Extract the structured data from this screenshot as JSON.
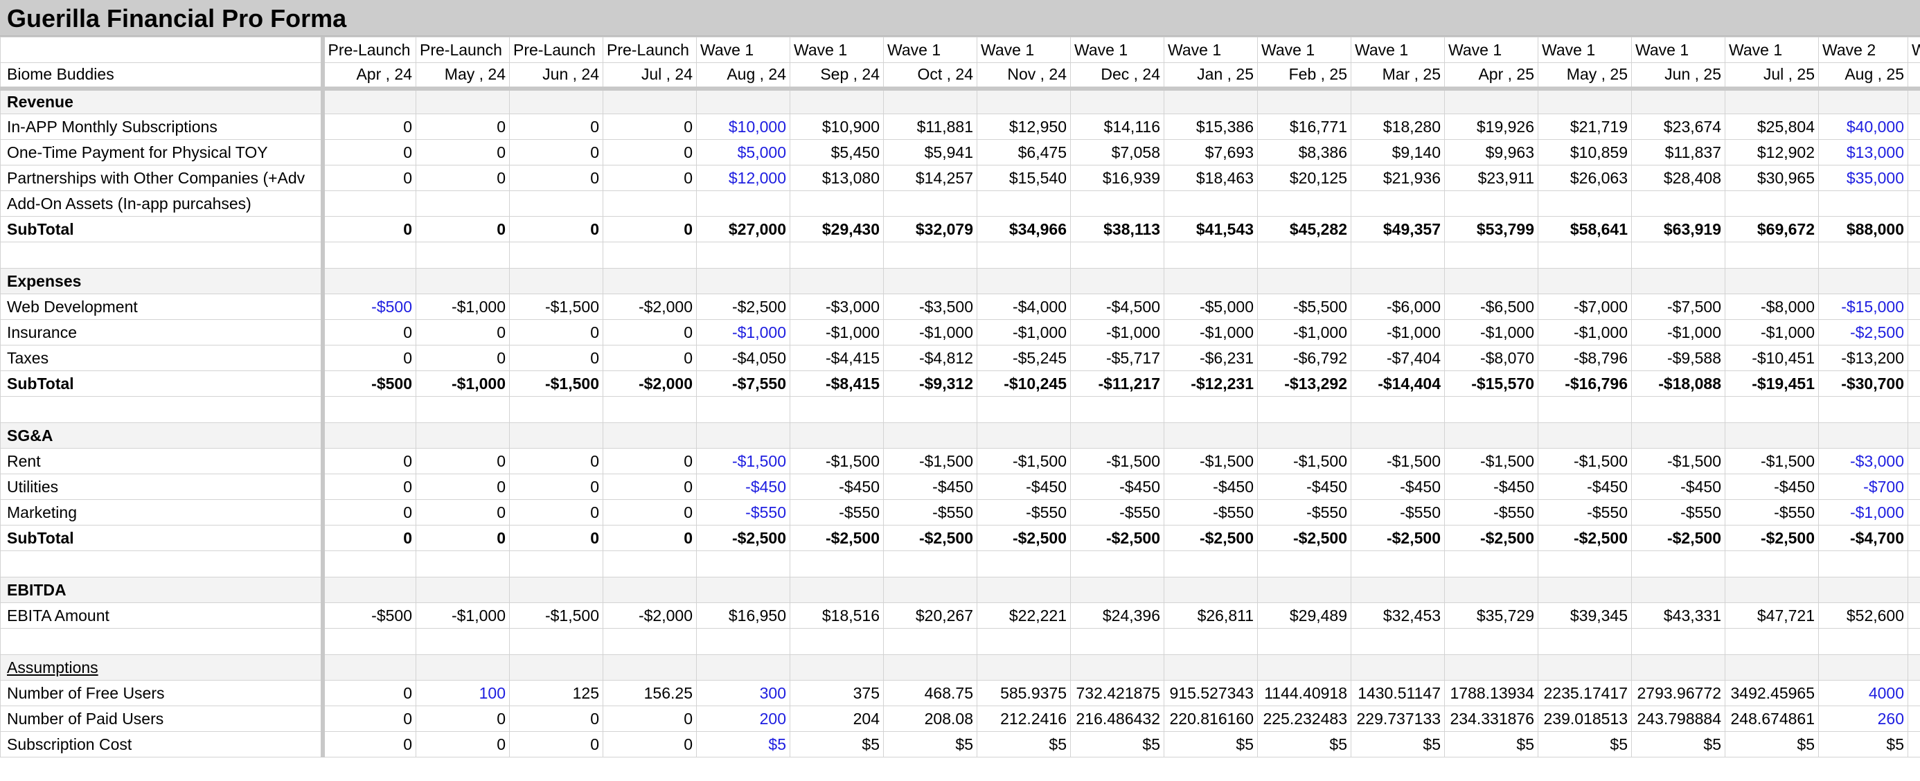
{
  "title": "Guerilla Financial Pro Forma",
  "sheet_label": "Biome Buddies",
  "phases": [
    "Pre-Launch",
    "Pre-Launch",
    "Pre-Launch",
    "Pre-Launch",
    "Wave 1",
    "Wave 1",
    "Wave 1",
    "Wave 1",
    "Wave 1",
    "Wave 1",
    "Wave 1",
    "Wave 1",
    "Wave 1",
    "Wave 1",
    "Wave 1",
    "Wave 1",
    "Wave 2",
    "W"
  ],
  "months": [
    "Apr , 24",
    "May , 24",
    "Jun , 24",
    "Jul , 24",
    "Aug , 24",
    "Sep , 24",
    "Oct , 24",
    "Nov , 24",
    "Dec , 24",
    "Jan , 25",
    "Feb , 25",
    "Mar , 25",
    "Apr , 25",
    "May , 25",
    "Jun , 25",
    "Jul , 25",
    "Aug , 25",
    ""
  ],
  "sections": [
    {
      "heading": "Revenue",
      "rows": [
        {
          "label": "In-APP Monthly Subscriptions",
          "values": [
            "0",
            "0",
            "0",
            "0",
            "$10,000",
            "$10,900",
            "$11,881",
            "$12,950",
            "$14,116",
            "$15,386",
            "$16,771",
            "$18,280",
            "$19,926",
            "$21,719",
            "$23,674",
            "$25,804",
            "$40,000",
            ""
          ],
          "blue": [
            4,
            16
          ]
        },
        {
          "label": "One-Time Payment for Physical TOY",
          "values": [
            "0",
            "0",
            "0",
            "0",
            "$5,000",
            "$5,450",
            "$5,941",
            "$6,475",
            "$7,058",
            "$7,693",
            "$8,386",
            "$9,140",
            "$9,963",
            "$10,859",
            "$11,837",
            "$12,902",
            "$13,000",
            ""
          ],
          "blue": [
            4,
            16
          ]
        },
        {
          "label": "Partnerships with Other Companies (+Adv",
          "values": [
            "0",
            "0",
            "0",
            "0",
            "$12,000",
            "$13,080",
            "$14,257",
            "$15,540",
            "$16,939",
            "$18,463",
            "$20,125",
            "$21,936",
            "$23,911",
            "$26,063",
            "$28,408",
            "$30,965",
            "$35,000",
            ""
          ],
          "blue": [
            4,
            16
          ]
        },
        {
          "label": "Add-On Assets (In-app purcahses)",
          "values": [
            "",
            "",
            "",
            "",
            "",
            "",
            "",
            "",
            "",
            "",
            "",
            "",
            "",
            "",
            "",
            "",
            "",
            ""
          ],
          "blue": []
        }
      ],
      "subtotal": {
        "label": "SubTotal",
        "values": [
          "0",
          "0",
          "0",
          "0",
          "$27,000",
          "$29,430",
          "$32,079",
          "$34,966",
          "$38,113",
          "$41,543",
          "$45,282",
          "$49,357",
          "$53,799",
          "$58,641",
          "$63,919",
          "$69,672",
          "$88,000",
          ""
        ]
      }
    },
    {
      "heading": "Expenses",
      "rows": [
        {
          "label": "Web Development",
          "values": [
            "-$500",
            "-$1,000",
            "-$1,500",
            "-$2,000",
            "-$2,500",
            "-$3,000",
            "-$3,500",
            "-$4,000",
            "-$4,500",
            "-$5,000",
            "-$5,500",
            "-$6,000",
            "-$6,500",
            "-$7,000",
            "-$7,500",
            "-$8,000",
            "-$15,000",
            ""
          ],
          "blue": [
            0,
            16
          ]
        },
        {
          "label": "Insurance",
          "values": [
            "0",
            "0",
            "0",
            "0",
            "-$1,000",
            "-$1,000",
            "-$1,000",
            "-$1,000",
            "-$1,000",
            "-$1,000",
            "-$1,000",
            "-$1,000",
            "-$1,000",
            "-$1,000",
            "-$1,000",
            "-$1,000",
            "-$2,500",
            ""
          ],
          "blue": [
            4,
            16
          ]
        },
        {
          "label": "Taxes",
          "values": [
            "0",
            "0",
            "0",
            "0",
            "-$4,050",
            "-$4,415",
            "-$4,812",
            "-$5,245",
            "-$5,717",
            "-$6,231",
            "-$6,792",
            "-$7,404",
            "-$8,070",
            "-$8,796",
            "-$9,588",
            "-$10,451",
            "-$13,200",
            ""
          ],
          "blue": []
        }
      ],
      "subtotal": {
        "label": "SubTotal",
        "values": [
          "-$500",
          "-$1,000",
          "-$1,500",
          "-$2,000",
          "-$7,550",
          "-$8,415",
          "-$9,312",
          "-$10,245",
          "-$11,217",
          "-$12,231",
          "-$13,292",
          "-$14,404",
          "-$15,570",
          "-$16,796",
          "-$18,088",
          "-$19,451",
          "-$30,700",
          ""
        ]
      }
    },
    {
      "heading": "SG&A",
      "rows": [
        {
          "label": "Rent",
          "values": [
            "0",
            "0",
            "0",
            "0",
            "-$1,500",
            "-$1,500",
            "-$1,500",
            "-$1,500",
            "-$1,500",
            "-$1,500",
            "-$1,500",
            "-$1,500",
            "-$1,500",
            "-$1,500",
            "-$1,500",
            "-$1,500",
            "-$3,000",
            ""
          ],
          "blue": [
            4,
            16
          ]
        },
        {
          "label": "Utilities",
          "values": [
            "0",
            "0",
            "0",
            "0",
            "-$450",
            "-$450",
            "-$450",
            "-$450",
            "-$450",
            "-$450",
            "-$450",
            "-$450",
            "-$450",
            "-$450",
            "-$450",
            "-$450",
            "-$700",
            ""
          ],
          "blue": [
            4,
            16
          ]
        },
        {
          "label": "Marketing",
          "values": [
            "0",
            "0",
            "0",
            "0",
            "-$550",
            "-$550",
            "-$550",
            "-$550",
            "-$550",
            "-$550",
            "-$550",
            "-$550",
            "-$550",
            "-$550",
            "-$550",
            "-$550",
            "-$1,000",
            ""
          ],
          "blue": [
            4,
            16
          ]
        }
      ],
      "subtotal": {
        "label": "SubTotal",
        "values": [
          "0",
          "0",
          "0",
          "0",
          "-$2,500",
          "-$2,500",
          "-$2,500",
          "-$2,500",
          "-$2,500",
          "-$2,500",
          "-$2,500",
          "-$2,500",
          "-$2,500",
          "-$2,500",
          "-$2,500",
          "-$2,500",
          "-$4,700",
          ""
        ]
      }
    },
    {
      "heading": "EBITDA",
      "rows": [
        {
          "label": "EBITA Amount",
          "values": [
            "-$500",
            "-$1,000",
            "-$1,500",
            "-$2,000",
            "$16,950",
            "$18,516",
            "$20,267",
            "$22,221",
            "$24,396",
            "$26,811",
            "$29,489",
            "$32,453",
            "$35,729",
            "$39,345",
            "$43,331",
            "$47,721",
            "$52,600",
            ""
          ],
          "blue": []
        }
      ]
    }
  ],
  "assumptions": {
    "heading": "Assumptions",
    "rows": [
      {
        "label": "Number of Free Users",
        "values": [
          "0",
          "100",
          "125",
          "156.25",
          "300",
          "375",
          "468.75",
          "585.9375",
          "732.421875",
          "915.527343",
          "1144.40918",
          "1430.51147",
          "1788.13934",
          "2235.17417",
          "2793.96772",
          "3492.45965",
          "4000",
          ""
        ],
        "blue": [
          1,
          4,
          16
        ]
      },
      {
        "label": "Number of Paid Users",
        "values": [
          "0",
          "0",
          "0",
          "0",
          "200",
          "204",
          "208.08",
          "212.2416",
          "216.486432",
          "220.816160",
          "225.232483",
          "229.737133",
          "234.331876",
          "239.018513",
          "243.798884",
          "248.674861",
          "260",
          ""
        ],
        "blue": [
          4,
          16
        ]
      },
      {
        "label": "Subscription Cost",
        "values": [
          "0",
          "0",
          "0",
          "0",
          "$5",
          "$5",
          "$5",
          "$5",
          "$5",
          "$5",
          "$5",
          "$5",
          "$5",
          "$5",
          "$5",
          "$5",
          "$5",
          ""
        ],
        "blue": [
          4
        ]
      }
    ]
  }
}
